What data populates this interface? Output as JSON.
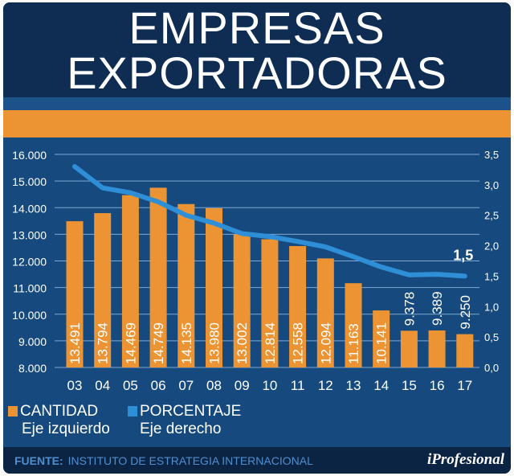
{
  "header": {
    "title_line1": "EMPRESAS",
    "title_line2": "EXPORTADORAS"
  },
  "chart_data": {
    "type": "bar",
    "title": "EMPRESAS EXPORTADORAS",
    "categories": [
      "03",
      "04",
      "05",
      "06",
      "07",
      "08",
      "09",
      "10",
      "11",
      "12",
      "13",
      "14",
      "15",
      "16",
      "17"
    ],
    "series": [
      {
        "name": "CANTIDAD",
        "axis": "left",
        "type": "bar",
        "color": "#ec9433",
        "values": [
          13491,
          13794,
          14469,
          14749,
          14135,
          13980,
          13002,
          12814,
          12558,
          12094,
          11163,
          10141,
          9378,
          9389,
          9250
        ],
        "labels": [
          "13.491",
          "13.794",
          "14.469",
          "14.749",
          "14.135",
          "13.980",
          "13.002",
          "12.814",
          "12.558",
          "12.094",
          "11.163",
          "10.141",
          "9.378",
          "9.389",
          "9.250"
        ]
      },
      {
        "name": "PORCENTAJE",
        "axis": "right",
        "type": "line",
        "color": "#2f8fd6",
        "values": [
          3.3,
          2.95,
          2.87,
          2.72,
          2.5,
          2.37,
          2.2,
          2.15,
          2.07,
          1.98,
          1.82,
          1.65,
          1.52,
          1.53,
          1.5
        ],
        "end_label": "1,5"
      }
    ],
    "left_axis": {
      "ylim": [
        8000,
        16000
      ],
      "ticks": [
        "8.000",
        "9.000",
        "10.000",
        "11.000",
        "12.000",
        "13.000",
        "14.000",
        "15.000",
        "16.000"
      ]
    },
    "right_axis": {
      "ylim": [
        0,
        3.5
      ],
      "ticks": [
        "0,0",
        "0,5",
        "1,0",
        "1,5",
        "2,0",
        "2,5",
        "3,0",
        "3,5"
      ]
    },
    "grid": true,
    "legend_placement": "bottom-left"
  },
  "legend": [
    {
      "label": "CANTIDAD",
      "sub": "Eje izquierdo",
      "color": "#ec9433"
    },
    {
      "label": "PORCENTAJE",
      "sub": "Eje derecho",
      "color": "#2f8fd6"
    }
  ],
  "footer": {
    "source_label": "FUENTE:",
    "source": "INSTITUTO DE ESTRATEGIA INTERNACIONAL",
    "logo": "iProfesional"
  }
}
